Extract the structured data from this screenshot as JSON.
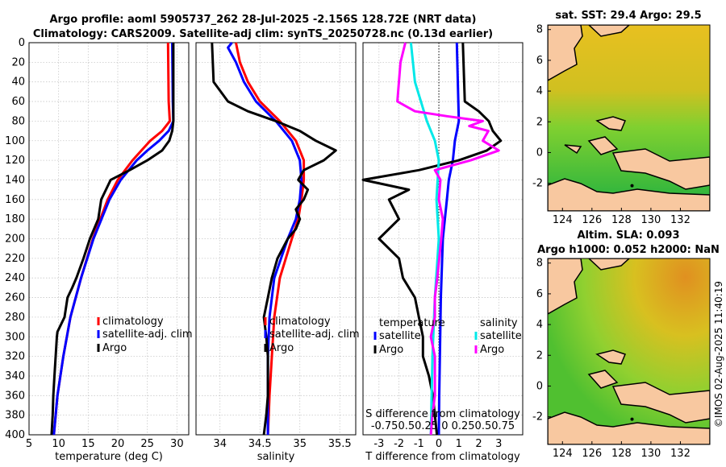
{
  "title_line1": "Argo profile: aoml 5905737_262 28-Jul-2025 -2.156S 128.72E (NRT data)",
  "title_line2": "Climatology: CARS2009. Satellite-adj clim: synTS_20250728.nc (0.13d earlier)",
  "colors": {
    "climatology": "#ff0000",
    "satellite": "#0000ff",
    "argo": "#000000",
    "sal_sat": "#00e8e8",
    "sal_argo": "#ff00ff"
  },
  "depth_ticks": [
    "0",
    "20",
    "40",
    "60",
    "80",
    "100",
    "120",
    "140",
    "160",
    "180",
    "200",
    "220",
    "240",
    "260",
    "280",
    "300",
    "320",
    "340",
    "360",
    "380",
    "400"
  ],
  "chart_data": [
    {
      "type": "line",
      "name": "temperature",
      "xlabel": "temperature (deg C)",
      "xlim": [
        5,
        32
      ],
      "ylim": [
        400,
        0
      ],
      "xticks": [
        "5",
        "10",
        "15",
        "20",
        "25",
        "30"
      ],
      "legend": [
        "climatology",
        "satellite-adj. clim",
        "Argo"
      ],
      "series": [
        {
          "name": "climatology",
          "depth": [
            0,
            60,
            80,
            90,
            100,
            110,
            120,
            140,
            160,
            200,
            240,
            280,
            320,
            360,
            400
          ],
          "values": [
            28.5,
            28.6,
            28.8,
            27.5,
            25.5,
            24.0,
            22.5,
            20.0,
            18.3,
            15.8,
            13.8,
            12.0,
            10.8,
            9.8,
            9.2
          ]
        },
        {
          "name": "satellite-adj. clim",
          "depth": [
            0,
            60,
            80,
            90,
            100,
            110,
            120,
            140,
            160,
            200,
            240,
            280,
            320,
            360,
            400
          ],
          "values": [
            29.2,
            29.3,
            29.4,
            28.6,
            27.0,
            25.0,
            23.2,
            20.5,
            18.6,
            15.9,
            13.8,
            12.0,
            10.8,
            9.8,
            9.2
          ]
        },
        {
          "name": "Argo",
          "depth": [
            0,
            80,
            90,
            100,
            110,
            120,
            130,
            140,
            160,
            180,
            200,
            220,
            240,
            250,
            260,
            280,
            295,
            300,
            320,
            340,
            360,
            380,
            400
          ],
          "values": [
            29.4,
            29.4,
            29.2,
            28.7,
            27.5,
            25.0,
            22.0,
            18.8,
            17.2,
            16.7,
            15.3,
            14.2,
            13.0,
            12.3,
            11.5,
            11.0,
            9.8,
            9.7,
            9.5,
            9.3,
            9.1,
            9.0,
            8.8
          ]
        }
      ]
    },
    {
      "type": "line",
      "name": "salinity",
      "xlabel": "salinity",
      "xlim": [
        33.7,
        35.7
      ],
      "ylim": [
        400,
        0
      ],
      "xticks": [
        "34",
        "34.5",
        "35",
        "35.5"
      ],
      "legend": [
        "climatology",
        "satellite-adj. clim",
        "Argo"
      ],
      "series": [
        {
          "name": "climatology",
          "depth": [
            0,
            20,
            40,
            60,
            80,
            100,
            120,
            140,
            160,
            180,
            200,
            240,
            280,
            320,
            360,
            400
          ],
          "values": [
            34.2,
            34.25,
            34.35,
            34.5,
            34.75,
            34.95,
            35.05,
            35.05,
            35.02,
            34.98,
            34.9,
            34.75,
            34.68,
            34.65,
            34.62,
            34.6
          ]
        },
        {
          "name": "satellite-adj. clim",
          "depth": [
            0,
            5,
            20,
            40,
            60,
            80,
            100,
            120,
            140,
            160,
            180,
            200,
            240,
            280,
            320,
            360,
            400
          ],
          "values": [
            34.15,
            34.1,
            34.2,
            34.3,
            34.45,
            34.7,
            34.9,
            35.0,
            35.02,
            35.0,
            34.95,
            34.85,
            34.68,
            34.62,
            34.6,
            34.6,
            34.6
          ]
        },
        {
          "name": "Argo",
          "depth": [
            0,
            40,
            60,
            70,
            80,
            85,
            90,
            100,
            110,
            120,
            130,
            140,
            150,
            160,
            170,
            180,
            190,
            200,
            220,
            240,
            260,
            280,
            300,
            320,
            340,
            360,
            380,
            400
          ],
          "values": [
            33.9,
            33.92,
            34.1,
            34.35,
            34.7,
            34.85,
            35.0,
            35.2,
            35.45,
            35.3,
            35.05,
            34.98,
            35.1,
            35.05,
            34.95,
            35.0,
            34.95,
            34.85,
            34.72,
            34.65,
            34.6,
            34.55,
            34.58,
            34.6,
            34.6,
            34.6,
            34.58,
            34.55
          ]
        }
      ]
    },
    {
      "type": "line",
      "name": "differences",
      "xlabel": "T difference from climatology",
      "xlabel2": "S difference from climatology",
      "xlim": [
        -3.8,
        4.2
      ],
      "ylim": [
        400,
        0
      ],
      "xticks": [
        "-3",
        "-2",
        "-1",
        "0",
        "1",
        "2",
        "3"
      ],
      "xticks2": "-0.750.50.25 0  0.250.50.75",
      "legend_heads": [
        "temperature",
        "salinity"
      ],
      "legend": [
        "satellite",
        "Argo",
        "satellite",
        "Argo"
      ],
      "series": [
        {
          "name": "T satellite",
          "depth": [
            0,
            80,
            100,
            120,
            140,
            160,
            200,
            260,
            320,
            360,
            400
          ],
          "values": [
            0.9,
            1.0,
            0.8,
            0.7,
            0.5,
            0.4,
            0.2,
            0.1,
            0.05,
            0.02,
            0.0
          ]
        },
        {
          "name": "T Argo",
          "depth": [
            0,
            60,
            70,
            80,
            90,
            100,
            110,
            120,
            130,
            140,
            150,
            160,
            180,
            200,
            220,
            240,
            260,
            280,
            300,
            320,
            340,
            360,
            380,
            400
          ],
          "values": [
            1.2,
            1.3,
            2.0,
            2.5,
            2.7,
            3.1,
            2.4,
            1.0,
            -1.0,
            -3.8,
            -1.5,
            -2.5,
            -2.0,
            -3.0,
            -2.0,
            -1.8,
            -1.2,
            -1.0,
            -0.8,
            -0.8,
            -0.5,
            -0.3,
            -0.2,
            -0.1
          ]
        },
        {
          "name": "S satellite",
          "depth": [
            0,
            40,
            80,
            100,
            120,
            160,
            200,
            260,
            320,
            400
          ],
          "values": [
            -0.35,
            -0.3,
            -0.15,
            -0.05,
            0.0,
            -0.03,
            0.0,
            -0.05,
            -0.08,
            -0.1
          ]
        },
        {
          "name": "S Argo",
          "depth": [
            0,
            20,
            60,
            70,
            75,
            80,
            85,
            90,
            100,
            110,
            120,
            130,
            140,
            160,
            180,
            200,
            240,
            260,
            280,
            300,
            320,
            340,
            360,
            380,
            400
          ],
          "values": [
            -0.42,
            -0.48,
            -0.52,
            -0.3,
            0.1,
            0.55,
            0.38,
            0.62,
            0.55,
            0.75,
            0.4,
            -0.05,
            0.02,
            0.0,
            0.05,
            0.03,
            -0.02,
            -0.05,
            -0.05,
            -0.1,
            -0.05,
            -0.05,
            -0.05,
            -0.08,
            -0.1
          ]
        }
      ]
    }
  ],
  "maps": [
    {
      "title": "sat. SST: 29.4  Argo: 29.5",
      "xticks": [
        "124",
        "126",
        "128",
        "130",
        "132"
      ],
      "yticks": [
        "8",
        "6",
        "4",
        "2",
        "0",
        "-2"
      ]
    },
    {
      "title_line1": "Altim. SLA: 0.093",
      "title_line2": "Argo h1000: 0.052 h2000: NaN",
      "xticks": [
        "124",
        "126",
        "128",
        "130",
        "132"
      ],
      "yticks": [
        "8",
        "6",
        "4",
        "2",
        "0",
        "-2"
      ]
    }
  ],
  "watermark": "©IMOS 02-Aug-2025 11:40:19"
}
